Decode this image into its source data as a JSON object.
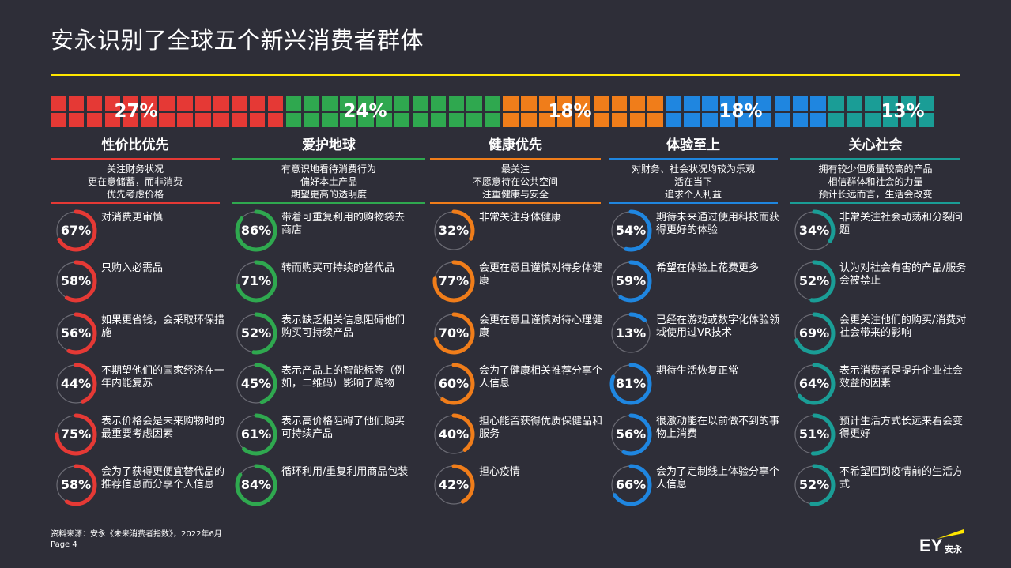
{
  "title": "安永识别了全球五个新兴消费者群体",
  "colors": {
    "background": "#2e2e38",
    "accent_rule": "#ffe600",
    "red": "#e53935",
    "green": "#2fa84f",
    "orange": "#f07d1a",
    "blue": "#1f86e0",
    "teal": "#1a9d96",
    "ring_track": "#6b6b74"
  },
  "share_bar": [
    {
      "label": "27%",
      "value": 27,
      "color": "red"
    },
    {
      "label": "24%",
      "value": 24,
      "color": "green"
    },
    {
      "label": "18%",
      "value": 18,
      "color": "orange"
    },
    {
      "label": "18%",
      "value": 18,
      "color": "blue"
    },
    {
      "label": "13%",
      "value": 13,
      "color": "teal"
    }
  ],
  "segments": [
    {
      "name": "性价比优先",
      "color": "red",
      "desc": [
        "关注财务状况",
        "更在意储蓄，而非消费",
        "优先考虑价格"
      ],
      "stats": [
        {
          "value": 67,
          "label": "67%",
          "text": "对消费更审慎"
        },
        {
          "value": 58,
          "label": "58%",
          "text": "只购入必需品"
        },
        {
          "value": 56,
          "label": "56%",
          "text": "如果更省钱，会采取环保措施"
        },
        {
          "value": 44,
          "label": "44%",
          "text": "不期望他们的国家经济在一年内能复苏"
        },
        {
          "value": 75,
          "label": "75%",
          "text": "表示价格会是未来购物时的最重要考虑因素"
        },
        {
          "value": 58,
          "label": "58%",
          "text": "会为了获得更便宜替代品的推荐信息而分享个人信息"
        }
      ]
    },
    {
      "name": "爱护地球",
      "color": "green",
      "desc": [
        "有意识地看待消费行为",
        "偏好本土产品",
        "期望更高的透明度"
      ],
      "stats": [
        {
          "value": 86,
          "label": "86%",
          "text": "带着可重复利用的购物袋去商店"
        },
        {
          "value": 71,
          "label": "71%",
          "text": "转而购买可持续的替代品"
        },
        {
          "value": 52,
          "label": "52%",
          "text": "表示缺乏相关信息阻碍他们购买可持续产品"
        },
        {
          "value": 45,
          "label": "45%",
          "text": "表示产品上的智能标签（例如，二维码）影响了购物"
        },
        {
          "value": 61,
          "label": "61%",
          "text": "表示高价格阻碍了他们购买可持续产品"
        },
        {
          "value": 84,
          "label": "84%",
          "text": "循环利用/重复利用商品包装"
        }
      ]
    },
    {
      "name": "健康优先",
      "color": "orange",
      "desc": [
        "最关注",
        "不愿意待在公共空间",
        "注重健康与安全"
      ],
      "stats": [
        {
          "value": 32,
          "label": "32%",
          "text": "非常关注身体健康"
        },
        {
          "value": 77,
          "label": "77%",
          "text": "会更在意且谨慎对待身体健康"
        },
        {
          "value": 70,
          "label": "70%",
          "text": "会更在意且谨慎对待心理健康"
        },
        {
          "value": 60,
          "label": "60%",
          "text": "会为了健康相关推荐分享个人信息"
        },
        {
          "value": 40,
          "label": "40%",
          "text": "担心能否获得优质保健品和服务"
        },
        {
          "value": 42,
          "label": "42%",
          "text": "担心疫情"
        }
      ]
    },
    {
      "name": "体验至上",
      "color": "blue",
      "desc": [
        "对财务、社会状况均较为乐观",
        "活在当下",
        "追求个人利益"
      ],
      "stats": [
        {
          "value": 54,
          "label": "54%",
          "text": "期待未来通过使用科技而获得更好的体验"
        },
        {
          "value": 59,
          "label": "59%",
          "text": "希望在体验上花费更多"
        },
        {
          "value": 13,
          "label": "13%",
          "text": "已经在游戏或数字化体验领域使用过VR技术"
        },
        {
          "value": 81,
          "label": "81%",
          "text": "期待生活恢复正常"
        },
        {
          "value": 56,
          "label": "56%",
          "text": "很激动能在以前做不到的事物上消费"
        },
        {
          "value": 66,
          "label": "66%",
          "text": "会为了定制线上体验分享个人信息"
        }
      ]
    },
    {
      "name": "关心社会",
      "color": "teal",
      "desc": [
        "拥有较少但质量较高的产品",
        "相信群体和社会的力量",
        "预计长远而言，生活会改变"
      ],
      "stats": [
        {
          "value": 34,
          "label": "34%",
          "text": "非常关注社会动荡和分裂问题"
        },
        {
          "value": 52,
          "label": "52%",
          "text": "认为对社会有害的产品/服务会被禁止"
        },
        {
          "value": 69,
          "label": "69%",
          "text": "会更关注他们的购买/消费对社会带来的影响"
        },
        {
          "value": 64,
          "label": "64%",
          "text": "表示消费者是提升企业社会效益的因素"
        },
        {
          "value": 51,
          "label": "51%",
          "text": "预计生活方式长远来看会变得更好"
        },
        {
          "value": 52,
          "label": "52%",
          "text": "不希望回到疫情前的生活方式"
        }
      ]
    }
  ],
  "footer": {
    "source": "资料来源：安永《未来消费者指数》，2022年6月",
    "page": "Page 4",
    "logo_text": "EY",
    "logo_cn": "安永"
  }
}
